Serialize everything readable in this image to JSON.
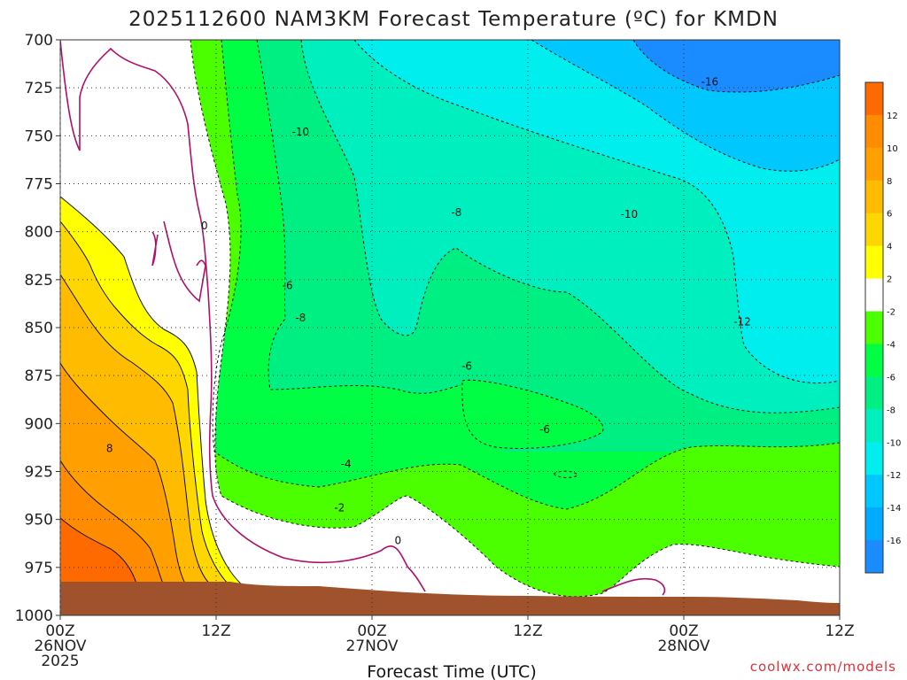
{
  "chart_data": {
    "type": "heatmap",
    "title": "2025112600 NAM3KM Forecast Temperature (ºC) for KMDN",
    "xlabel": "Forecast Time (UTC)",
    "ylabel": "",
    "credit": "coolwx.com/models",
    "x_ticks": [
      {
        "hours": 0,
        "lines": [
          "00Z",
          "26NOV",
          "2025"
        ]
      },
      {
        "hours": 12,
        "lines": [
          "12Z"
        ]
      },
      {
        "hours": 24,
        "lines": [
          "00Z",
          "27NOV"
        ]
      },
      {
        "hours": 36,
        "lines": [
          "12Z"
        ]
      },
      {
        "hours": 48,
        "lines": [
          "00Z",
          "28NOV"
        ]
      },
      {
        "hours": 60,
        "lines": [
          "12Z"
        ]
      }
    ],
    "xlim": [
      0,
      60
    ],
    "y_ticks": [
      700,
      725,
      750,
      775,
      800,
      825,
      850,
      875,
      900,
      925,
      950,
      975,
      1000
    ],
    "ylim": [
      700,
      1000
    ],
    "colorbar": {
      "levels": [
        12,
        10,
        8,
        6,
        4,
        2,
        -2,
        -4,
        -6,
        -8,
        -10,
        -12,
        -14,
        -16
      ],
      "colors": [
        "#ff6a00",
        "#ff8c00",
        "#ffa000",
        "#ffbb00",
        "#ffd700",
        "#ffff00",
        "#ffffff",
        "#4cff00",
        "#00ff44",
        "#00ef82",
        "#00efbf",
        "#00eeee",
        "#00c8ff",
        "#00aaff",
        "#1a8cff"
      ]
    },
    "contour_labels": [
      {
        "text": "-16",
        "hours": 50.0,
        "hpa": 722
      },
      {
        "text": "-10",
        "hours": 18.5,
        "hpa": 748
      },
      {
        "text": "-10",
        "hours": 43.8,
        "hpa": 791
      },
      {
        "text": "-12",
        "hours": 52.5,
        "hpa": 847
      },
      {
        "text": "-8",
        "hours": 30.5,
        "hpa": 790
      },
      {
        "text": "-6",
        "hours": 17.5,
        "hpa": 828
      },
      {
        "text": "-8",
        "hours": 18.5,
        "hpa": 845
      },
      {
        "text": "-6",
        "hours": 31.3,
        "hpa": 870
      },
      {
        "text": "-6",
        "hours": 37.3,
        "hpa": 903
      },
      {
        "text": "-4",
        "hours": 22.0,
        "hpa": 921
      },
      {
        "text": "-2",
        "hours": 21.5,
        "hpa": 944
      },
      {
        "text": "0",
        "hours": 26.0,
        "hpa": 961
      },
      {
        "text": "0",
        "hours": 11.1,
        "hpa": 797
      },
      {
        "text": "8",
        "hours": 3.8,
        "hpa": 913
      }
    ],
    "terrain_color": "#a0522d"
  }
}
